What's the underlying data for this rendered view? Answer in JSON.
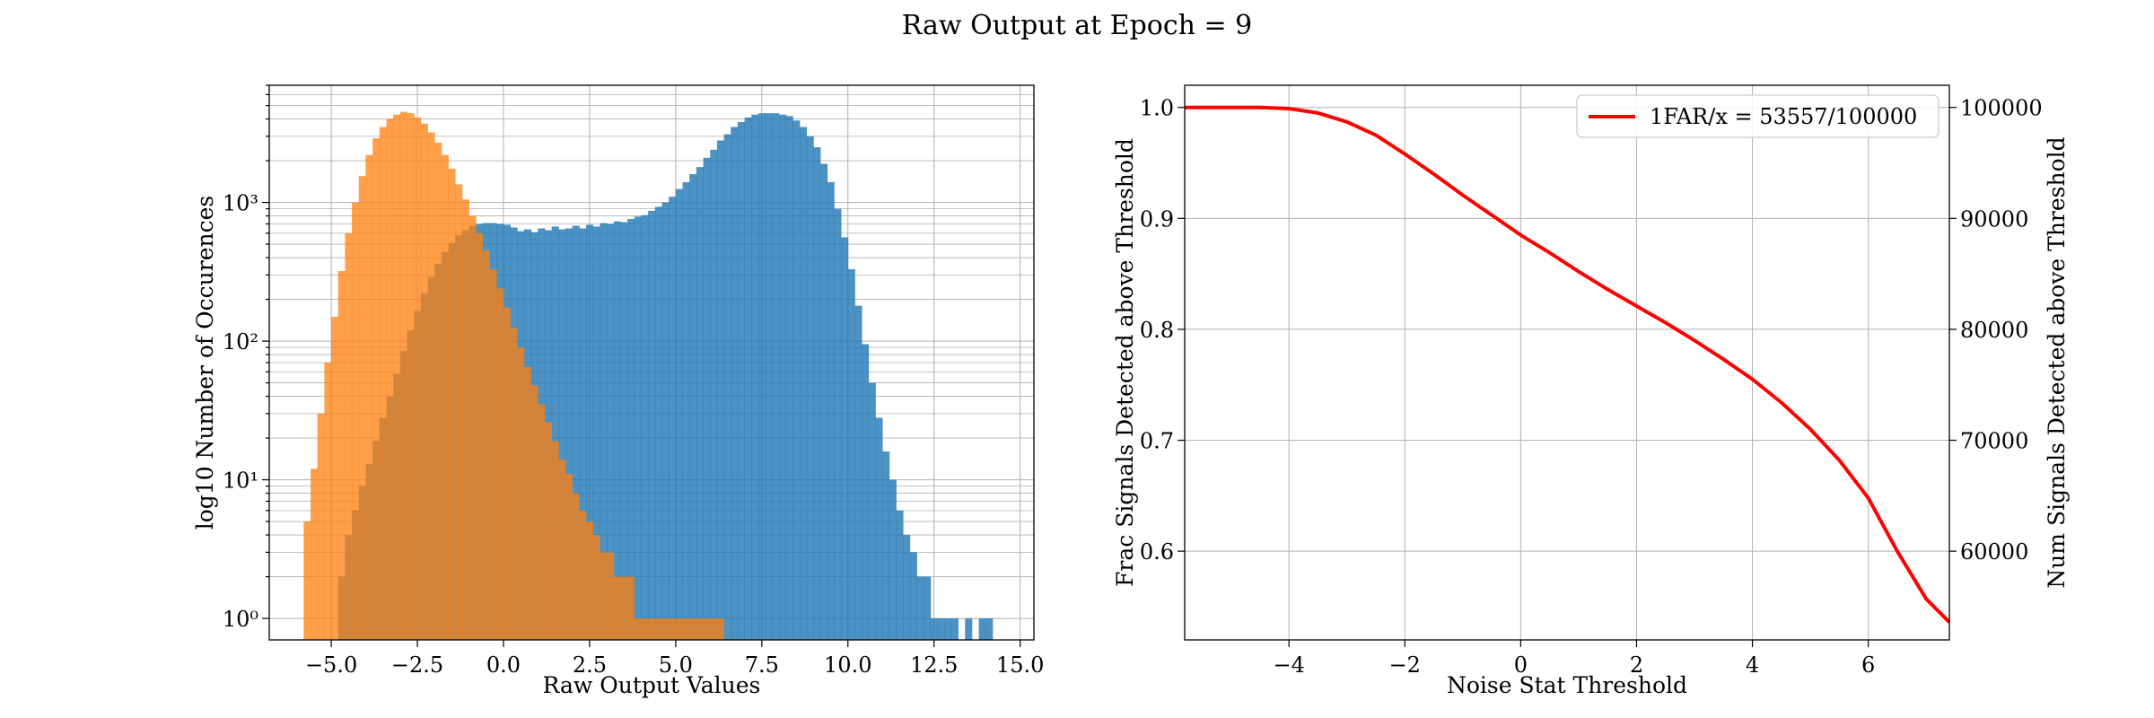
{
  "figure": {
    "title": "Raw Output at Epoch = 9"
  },
  "colors": {
    "signal": "#1f77b4",
    "noise": "#ff7f0e",
    "efficiency_line": "#ff0000",
    "grid": "#b0b0b0"
  },
  "chart_data": [
    {
      "type": "bar",
      "subtype": "histogram",
      "title": "",
      "xlabel": "Raw Output Values",
      "ylabel": "log10 Number of Occurences",
      "xlim": [
        -6.8,
        15.4
      ],
      "ylim": [
        0.7,
        7000
      ],
      "yscale": "log",
      "grid": true,
      "xticks": [
        "−5.0",
        "−2.5",
        "0.0",
        "2.5",
        "5.0",
        "7.5",
        "10.0",
        "12.5",
        "15.0"
      ],
      "yticks": [
        "10⁰",
        "10¹",
        "10²",
        "10³"
      ],
      "bin_width": 0.2,
      "series": [
        {
          "color": "#1f77b4",
          "x": [
            -4.8,
            -4.6,
            -4.4,
            -4.2,
            -4.0,
            -3.8,
            -3.6,
            -3.4,
            -3.2,
            -3.0,
            -2.8,
            -2.6,
            -2.4,
            -2.2,
            -2.0,
            -1.8,
            -1.6,
            -1.4,
            -1.2,
            -1.0,
            -0.8,
            -0.6,
            -0.4,
            -0.2,
            0.0,
            0.2,
            0.4,
            0.6,
            0.8,
            1.0,
            1.2,
            1.4,
            1.6,
            1.8,
            2.0,
            2.2,
            2.4,
            2.6,
            2.8,
            3.0,
            3.2,
            3.4,
            3.6,
            3.8,
            4.0,
            4.2,
            4.4,
            4.6,
            4.8,
            5.0,
            5.2,
            5.4,
            5.6,
            5.8,
            6.0,
            6.2,
            6.4,
            6.6,
            6.8,
            7.0,
            7.2,
            7.4,
            7.6,
            7.8,
            8.0,
            8.2,
            8.4,
            8.6,
            8.8,
            9.0,
            9.2,
            9.4,
            9.6,
            9.8,
            10.0,
            10.2,
            10.4,
            10.6,
            10.8,
            11.0,
            11.2,
            11.4,
            11.6,
            11.8,
            12.0,
            12.2,
            12.4,
            12.6,
            12.8,
            13.0,
            13.4,
            13.8,
            14.0
          ],
          "values": [
            2,
            4,
            6,
            9,
            13,
            19,
            28,
            40,
            58,
            85,
            120,
            165,
            220,
            290,
            360,
            440,
            510,
            580,
            630,
            680,
            700,
            710,
            710,
            700,
            690,
            660,
            620,
            640,
            610,
            650,
            630,
            670,
            640,
            650,
            680,
            650,
            690,
            670,
            710,
            700,
            730,
            720,
            760,
            790,
            810,
            870,
            930,
            1000,
            1100,
            1250,
            1400,
            1600,
            1800,
            2100,
            2400,
            2800,
            3100,
            3500,
            3800,
            4100,
            4300,
            4400,
            4400,
            4400,
            4300,
            4200,
            3900,
            3500,
            3000,
            2500,
            1900,
            1400,
            900,
            560,
            330,
            180,
            95,
            50,
            28,
            16,
            10,
            6,
            4,
            3,
            2,
            2,
            1,
            1,
            1,
            1,
            1,
            1,
            1
          ]
        },
        {
          "color": "#ff7f0e",
          "x": [
            -5.8,
            -5.6,
            -5.4,
            -5.2,
            -5.0,
            -4.8,
            -4.6,
            -4.4,
            -4.2,
            -4.0,
            -3.8,
            -3.6,
            -3.4,
            -3.2,
            -3.0,
            -2.8,
            -2.6,
            -2.4,
            -2.2,
            -2.0,
            -1.8,
            -1.6,
            -1.4,
            -1.2,
            -1.0,
            -0.8,
            -0.6,
            -0.4,
            -0.2,
            0.0,
            0.2,
            0.4,
            0.6,
            0.8,
            1.0,
            1.2,
            1.4,
            1.6,
            1.8,
            2.0,
            2.2,
            2.4,
            2.6,
            2.8,
            3.0,
            3.2,
            3.4,
            3.6,
            3.8,
            4.0,
            4.2,
            4.4,
            4.6,
            4.8,
            5.0,
            5.2,
            5.4,
            5.6,
            5.8,
            6.0,
            6.2
          ],
          "values": [
            5,
            12,
            30,
            70,
            150,
            320,
            600,
            1000,
            1550,
            2200,
            2900,
            3500,
            4000,
            4300,
            4500,
            4400,
            4100,
            3700,
            3200,
            2700,
            2200,
            1750,
            1350,
            1050,
            800,
            600,
            450,
            330,
            240,
            175,
            125,
            90,
            65,
            48,
            35,
            26,
            19,
            14,
            11,
            8,
            6,
            5,
            4,
            3,
            3,
            2,
            2,
            2,
            1,
            1,
            1,
            1,
            1,
            1,
            1,
            1,
            1,
            1,
            1,
            1,
            1
          ]
        }
      ]
    },
    {
      "type": "line",
      "title": "",
      "xlabel": "Noise Stat Threshold",
      "ylabel": "Frac Signals Detected above Threshold",
      "ylabel_right": "Num Signals Detected above Threshold",
      "xlim": [
        -5.8,
        7.4
      ],
      "ylim": [
        0.52,
        1.02
      ],
      "ylim_right": [
        52000,
        102000
      ],
      "grid": true,
      "legend_position": "top-right",
      "xticks": [
        "−4",
        "−2",
        "0",
        "2",
        "4",
        "6"
      ],
      "yticks": [
        "0.6",
        "0.7",
        "0.8",
        "0.9",
        "1.0"
      ],
      "yticks_right": [
        "60000",
        "70000",
        "80000",
        "90000",
        "100000"
      ],
      "series": [
        {
          "name": "1FAR/x = 53557/100000",
          "color": "#ff0000",
          "x": [
            -5.8,
            -5.0,
            -4.5,
            -4.0,
            -3.5,
            -3.0,
            -2.5,
            -2.0,
            -1.5,
            -1.0,
            -0.5,
            0.0,
            0.5,
            1.0,
            1.5,
            2.0,
            2.5,
            3.0,
            3.5,
            4.0,
            4.5,
            5.0,
            5.5,
            6.0,
            6.5,
            7.0,
            7.4
          ],
          "values": [
            1.0,
            1.0,
            1.0,
            0.999,
            0.995,
            0.987,
            0.975,
            0.958,
            0.94,
            0.921,
            0.903,
            0.885,
            0.869,
            0.852,
            0.836,
            0.821,
            0.806,
            0.79,
            0.773,
            0.755,
            0.734,
            0.71,
            0.682,
            0.648,
            0.6,
            0.557,
            0.536
          ]
        }
      ]
    }
  ]
}
